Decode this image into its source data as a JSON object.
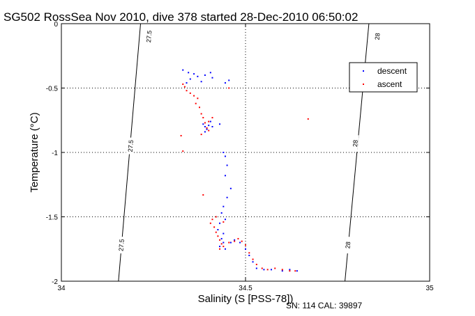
{
  "chart_data": {
    "type": "scatter",
    "title": "SG502 RossSea Nov 2010, dive 378 started 28-Dec-2010 06:50:02",
    "xlabel": "Salinity (S [PSS-78])",
    "ylabel": "Temperature (°C)",
    "xlim": [
      34,
      35
    ],
    "ylim": [
      -2,
      0
    ],
    "xticks": [
      "34",
      "34.5",
      "35"
    ],
    "yticks": [
      "0",
      "-0.5",
      "-1",
      "-1.5",
      "-2"
    ],
    "grid": true,
    "legend_position": "top-right",
    "footnote": "SN: 114  CAL: 39897",
    "density_contours": [
      {
        "label": "27.5",
        "points": [
          [
            34.215,
            0
          ],
          [
            34.155,
            -2
          ]
        ]
      },
      {
        "label": "28",
        "points": [
          [
            34.835,
            0
          ],
          [
            34.77,
            -2
          ]
        ]
      }
    ],
    "contour_labels": [
      {
        "text": "27.5",
        "x": 34.24,
        "y": -0.1
      },
      {
        "text": "27.5",
        "x": 34.19,
        "y": -0.95
      },
      {
        "text": "27.5",
        "x": 34.165,
        "y": -1.72
      },
      {
        "text": "28",
        "x": 34.86,
        "y": -0.1
      },
      {
        "text": "28",
        "x": 34.8,
        "y": -0.93
      },
      {
        "text": "28",
        "x": 34.78,
        "y": -1.72
      }
    ],
    "series": [
      {
        "name": "descent",
        "color": "#0000ff",
        "points": [
          [
            34.33,
            -0.36
          ],
          [
            34.345,
            -0.38
          ],
          [
            34.36,
            -0.39
          ],
          [
            34.37,
            -0.41
          ],
          [
            34.35,
            -0.43
          ],
          [
            34.38,
            -0.45
          ],
          [
            34.39,
            -0.4
          ],
          [
            34.405,
            -0.38
          ],
          [
            34.41,
            -0.42
          ],
          [
            34.34,
            -0.46
          ],
          [
            34.445,
            -0.46
          ],
          [
            34.455,
            -0.44
          ],
          [
            34.385,
            -0.78
          ],
          [
            34.39,
            -0.8
          ],
          [
            34.395,
            -0.82
          ],
          [
            34.4,
            -0.79
          ],
          [
            34.405,
            -0.76
          ],
          [
            34.41,
            -0.8
          ],
          [
            34.39,
            -0.84
          ],
          [
            34.43,
            -0.78
          ],
          [
            34.44,
            -1.0
          ],
          [
            34.445,
            -1.03
          ],
          [
            34.45,
            -1.1
          ],
          [
            34.445,
            -1.18
          ],
          [
            34.46,
            -1.28
          ],
          [
            34.45,
            -1.35
          ],
          [
            34.44,
            -1.42
          ],
          [
            34.435,
            -1.47
          ],
          [
            34.445,
            -1.52
          ],
          [
            34.43,
            -1.55
          ],
          [
            34.425,
            -1.6
          ],
          [
            34.44,
            -1.63
          ],
          [
            34.435,
            -1.67
          ],
          [
            34.44,
            -1.7
          ],
          [
            34.43,
            -1.73
          ],
          [
            34.445,
            -1.75
          ],
          [
            34.46,
            -1.7
          ],
          [
            34.47,
            -1.68
          ],
          [
            34.485,
            -1.7
          ],
          [
            34.5,
            -1.75
          ],
          [
            34.51,
            -1.8
          ],
          [
            34.52,
            -1.85
          ],
          [
            34.53,
            -1.9
          ],
          [
            34.55,
            -1.91
          ],
          [
            34.57,
            -1.91
          ],
          [
            34.6,
            -1.92
          ],
          [
            34.62,
            -1.91
          ],
          [
            34.64,
            -1.92
          ]
        ]
      },
      {
        "name": "ascent",
        "color": "#ff0000",
        "points": [
          [
            34.33,
            -0.47
          ],
          [
            34.335,
            -0.49
          ],
          [
            34.34,
            -0.52
          ],
          [
            34.35,
            -0.54
          ],
          [
            34.36,
            -0.56
          ],
          [
            34.37,
            -0.58
          ],
          [
            34.365,
            -0.62
          ],
          [
            34.375,
            -0.65
          ],
          [
            34.38,
            -0.7
          ],
          [
            34.385,
            -0.73
          ],
          [
            34.39,
            -0.77
          ],
          [
            34.395,
            -0.81
          ],
          [
            34.4,
            -0.83
          ],
          [
            34.38,
            -0.86
          ],
          [
            34.41,
            -0.73
          ],
          [
            34.4,
            -0.76
          ],
          [
            34.325,
            -0.87
          ],
          [
            34.33,
            -0.99
          ],
          [
            34.455,
            -0.5
          ],
          [
            34.67,
            -0.74
          ],
          [
            34.385,
            -1.33
          ],
          [
            34.41,
            -1.52
          ],
          [
            34.405,
            -1.55
          ],
          [
            34.415,
            -1.58
          ],
          [
            34.42,
            -1.62
          ],
          [
            34.425,
            -1.65
          ],
          [
            34.43,
            -1.68
          ],
          [
            34.435,
            -1.71
          ],
          [
            34.44,
            -1.73
          ],
          [
            34.43,
            -1.75
          ],
          [
            34.44,
            -1.54
          ],
          [
            34.42,
            -1.5
          ],
          [
            34.455,
            -1.7
          ],
          [
            34.47,
            -1.69
          ],
          [
            34.48,
            -1.67
          ],
          [
            34.49,
            -1.69
          ],
          [
            34.5,
            -1.72
          ],
          [
            34.51,
            -1.78
          ],
          [
            34.52,
            -1.83
          ],
          [
            34.53,
            -1.87
          ],
          [
            34.545,
            -1.9
          ],
          [
            34.56,
            -1.91
          ],
          [
            34.58,
            -1.9
          ],
          [
            34.6,
            -1.91
          ],
          [
            34.62,
            -1.92
          ],
          [
            34.635,
            -1.92
          ]
        ]
      }
    ]
  }
}
